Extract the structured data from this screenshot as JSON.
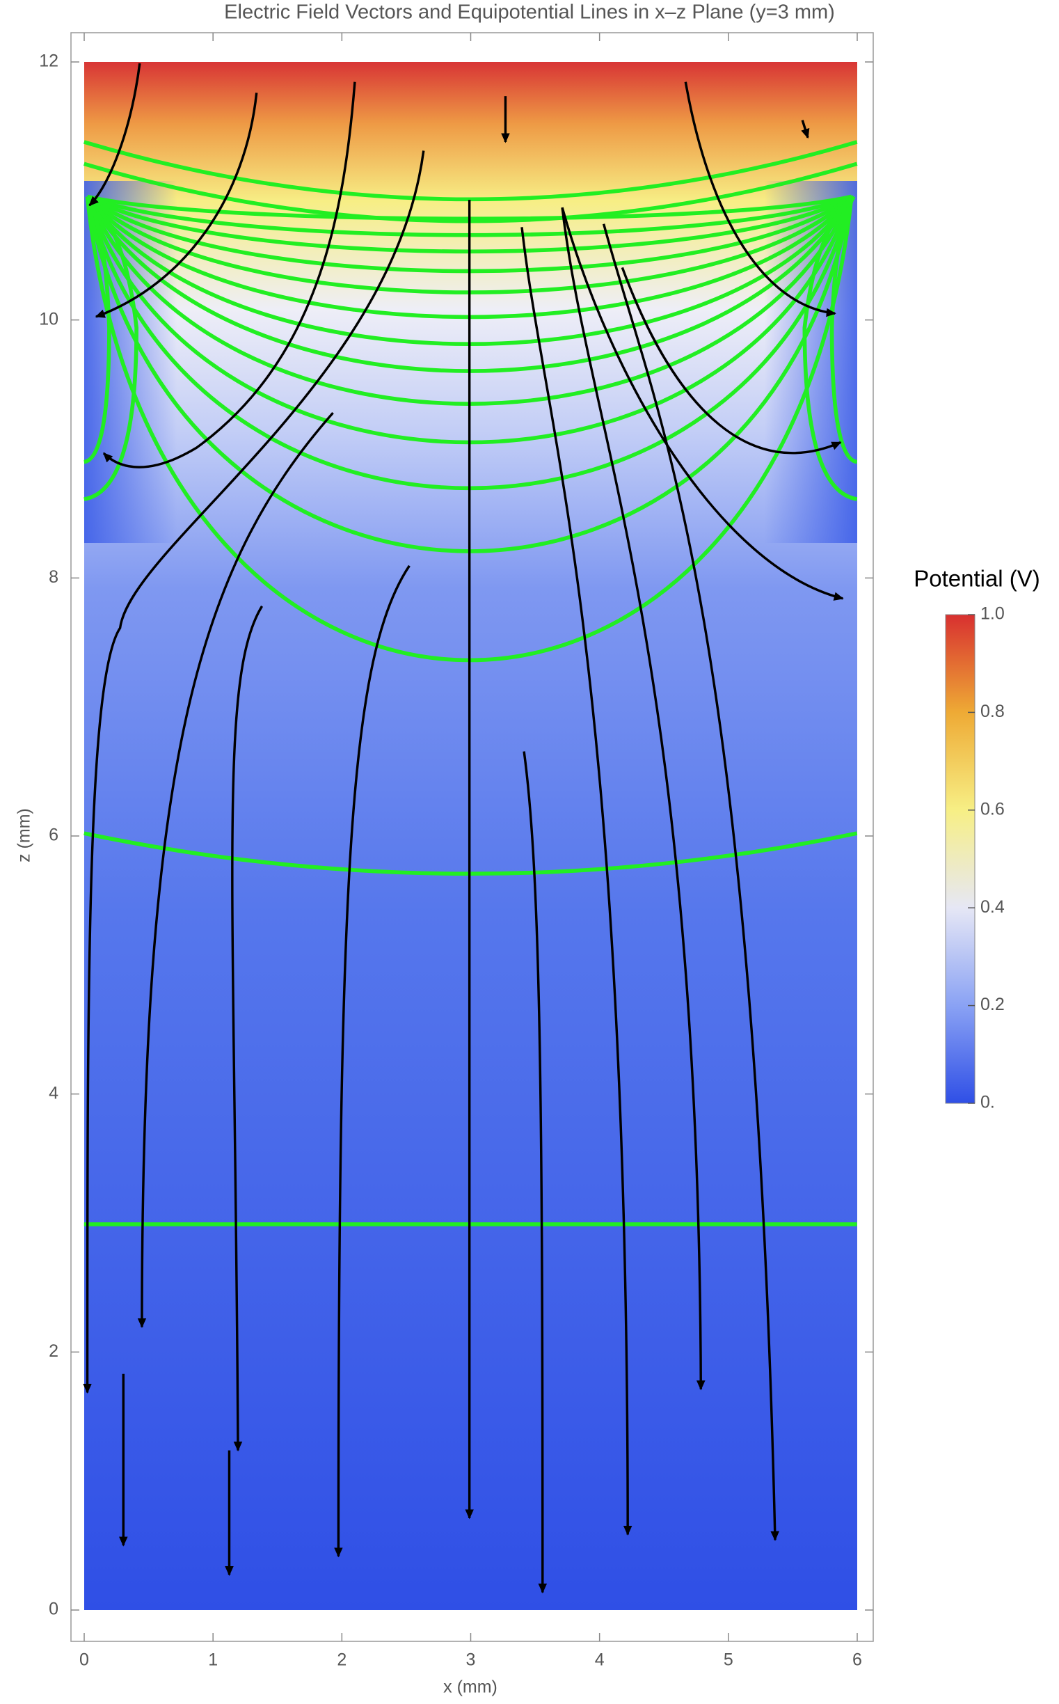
{
  "chart_data": {
    "type": "density",
    "title": "Electric Field Vectors and Equipotential Lines in x–z Plane (y=3 mm)",
    "xlabel": "x (mm)",
    "ylabel": "z (mm)",
    "xlim": [
      0,
      6
    ],
    "ylim": [
      0,
      12
    ],
    "xticks": [
      0,
      1,
      2,
      3,
      4,
      5,
      6
    ],
    "yticks": [
      0,
      2,
      4,
      6,
      8,
      10,
      12
    ],
    "colorbar": {
      "title": "Potential (V)",
      "lim": [
        0,
        1
      ],
      "ticks": [
        {
          "value": 0,
          "label": "0."
        },
        0.2,
        0.4,
        0.6,
        0.8,
        {
          "value": 1,
          "label": "1.0"
        }
      ]
    }
  }
}
